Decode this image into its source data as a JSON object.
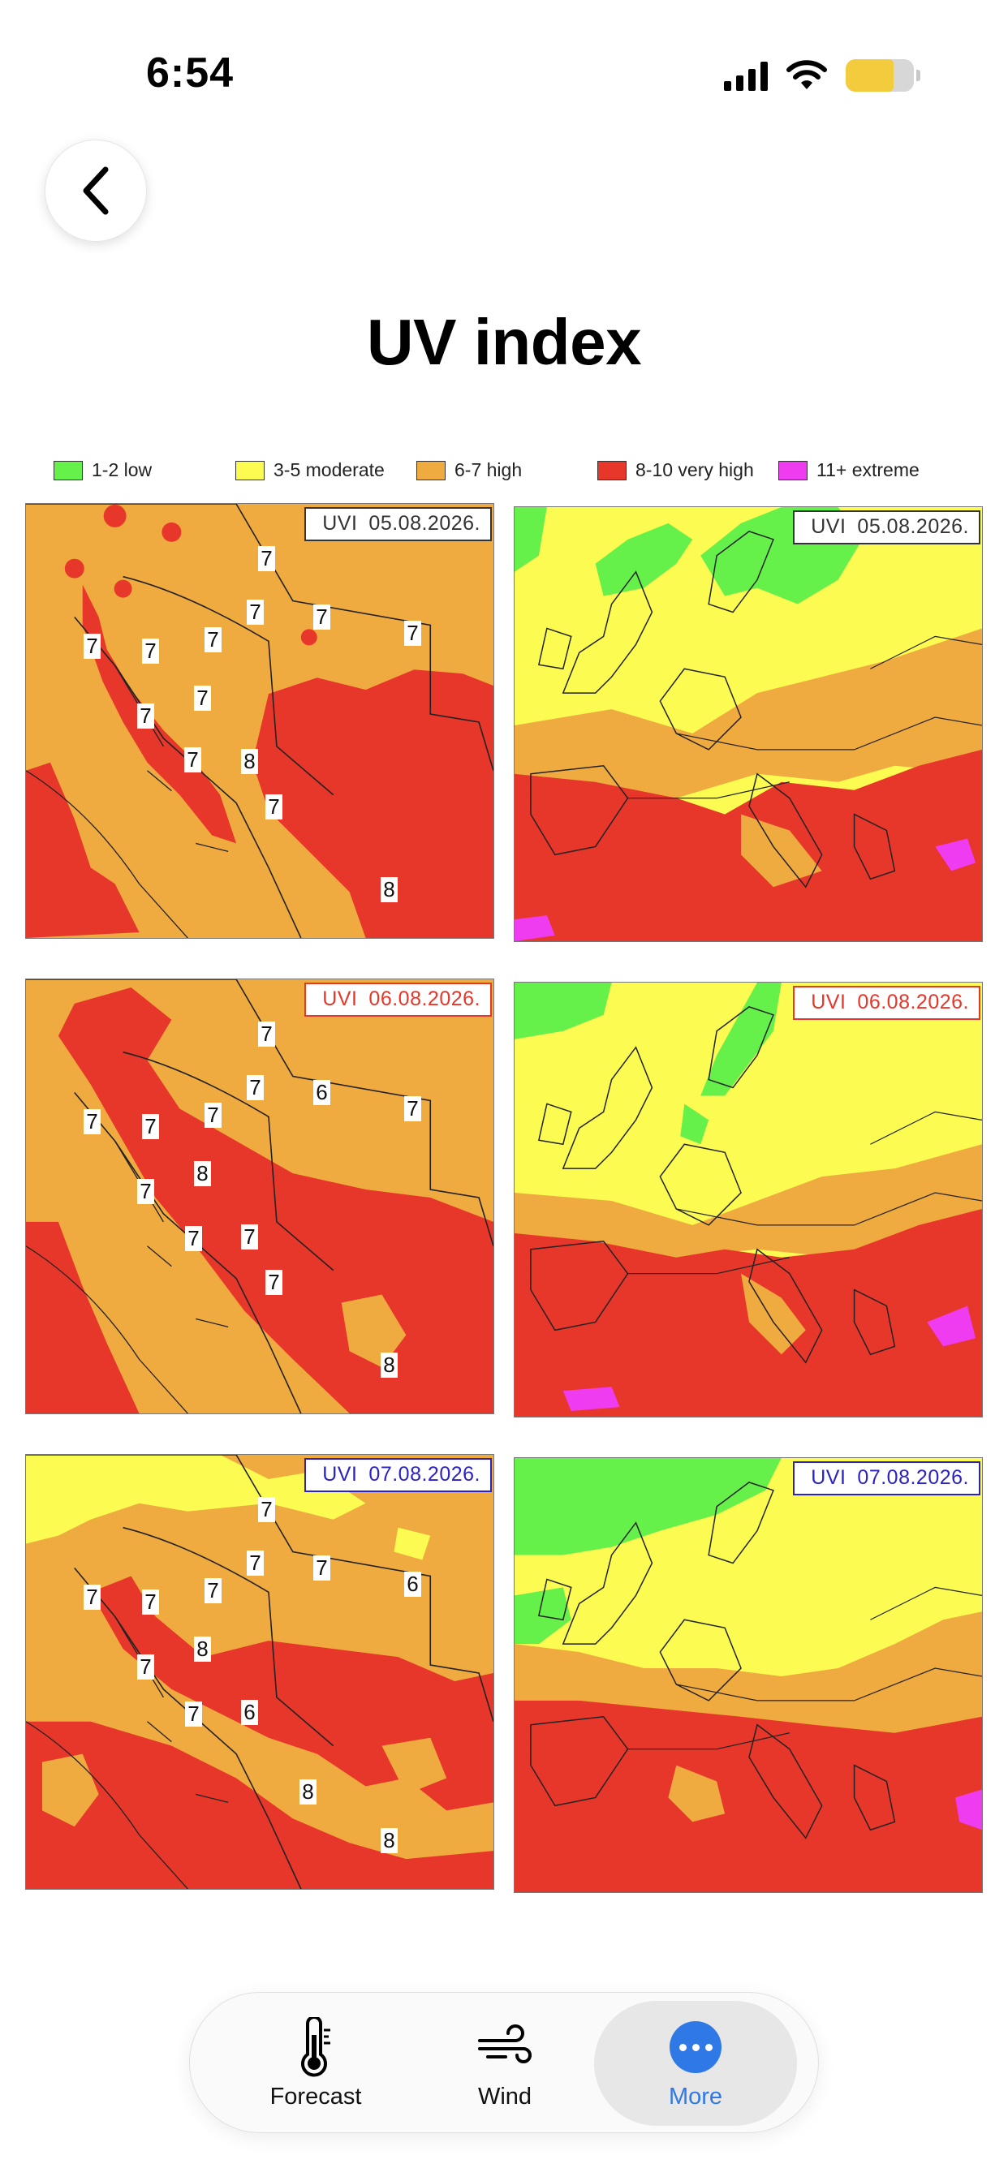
{
  "status_bar": {
    "time": "6:54",
    "signal_bars": 4,
    "battery_level": 0.7
  },
  "header": {
    "title": "UV index"
  },
  "legend": [
    {
      "label": "1-2 low",
      "color": "#66f04a"
    },
    {
      "label": "3-5 moderate",
      "color": "#fbfb52"
    },
    {
      "label": "6-7 high",
      "color": "#efaa40"
    },
    {
      "label": "8-10 very high",
      "color": "#e7362a"
    },
    {
      "label": "11+ extreme",
      "color": "#ef3cf0"
    }
  ],
  "forecasts": [
    {
      "prefix": "UVI",
      "date": "05.08.2026.",
      "label_color": "#333333",
      "croatia_values": [
        "7",
        "7",
        "7",
        "7",
        "7",
        "7",
        "7",
        "7",
        "7",
        "8",
        "7",
        "7",
        "8"
      ]
    },
    {
      "prefix": "UVI",
      "date": "06.08.2026.",
      "label_color": "#e7362a",
      "croatia_values": [
        "7",
        "7",
        "6",
        "7",
        "7",
        "7",
        "7",
        "8",
        "7",
        "7",
        "7",
        "7",
        "8"
      ]
    },
    {
      "prefix": "UVI",
      "date": "07.08.2026.",
      "label_color": "#2b22c4",
      "croatia_values": [
        "7",
        "7",
        "7",
        "6",
        "7",
        "7",
        "7",
        "8",
        "7",
        "6",
        "7",
        "8",
        "8"
      ]
    }
  ],
  "tabbar": {
    "tabs": [
      {
        "label": "Forecast",
        "icon": "thermometer-icon",
        "active": false
      },
      {
        "label": "Wind",
        "icon": "wind-icon",
        "active": false
      },
      {
        "label": "More",
        "icon": "more-icon",
        "active": true
      }
    ],
    "active_color": "#2f79e6"
  }
}
